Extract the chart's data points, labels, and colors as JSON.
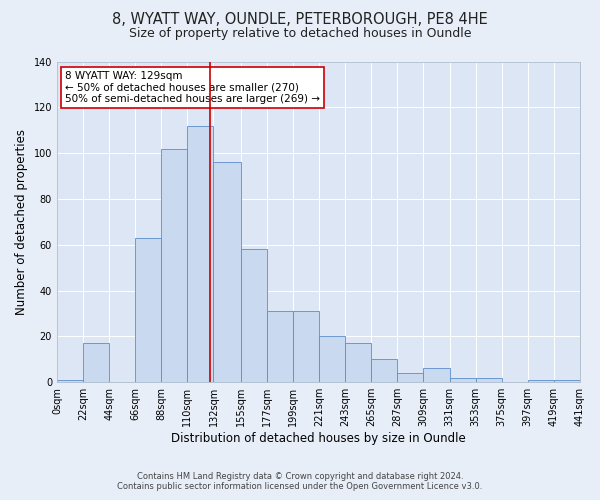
{
  "title": "8, WYATT WAY, OUNDLE, PETERBOROUGH, PE8 4HE",
  "subtitle": "Size of property relative to detached houses in Oundle",
  "xlabel": "Distribution of detached houses by size in Oundle",
  "ylabel": "Number of detached properties",
  "bin_edges": [
    0,
    22,
    44,
    66,
    88,
    110,
    132,
    155,
    177,
    199,
    221,
    243,
    265,
    287,
    309,
    331,
    353,
    375,
    397,
    419,
    441
  ],
  "bar_heights": [
    1,
    17,
    0,
    63,
    102,
    112,
    96,
    58,
    31,
    31,
    20,
    17,
    10,
    4,
    6,
    2,
    2,
    0,
    1,
    1
  ],
  "bar_color": "#c9d9f0",
  "bar_edge_color": "#5b8dcb",
  "vline_x": 129,
  "vline_color": "#cc0000",
  "ylim": [
    0,
    140
  ],
  "yticks": [
    0,
    20,
    40,
    60,
    80,
    100,
    120,
    140
  ],
  "annotation_title": "8 WYATT WAY: 129sqm",
  "annotation_line1": "← 50% of detached houses are smaller (270)",
  "annotation_line2": "50% of semi-detached houses are larger (269) →",
  "annotation_box_color": "#ffffff",
  "annotation_box_edge": "#cc0000",
  "background_color": "#e8eef8",
  "plot_bg_color": "#dce6f5",
  "grid_color": "#ffffff",
  "title_fontsize": 10.5,
  "subtitle_fontsize": 9,
  "xlabel_fontsize": 8.5,
  "ylabel_fontsize": 8.5,
  "tick_label_fontsize": 7,
  "annotation_fontsize": 7.5,
  "footer_line1": "Contains HM Land Registry data © Crown copyright and database right 2024.",
  "footer_line2": "Contains public sector information licensed under the Open Government Licence v3.0."
}
